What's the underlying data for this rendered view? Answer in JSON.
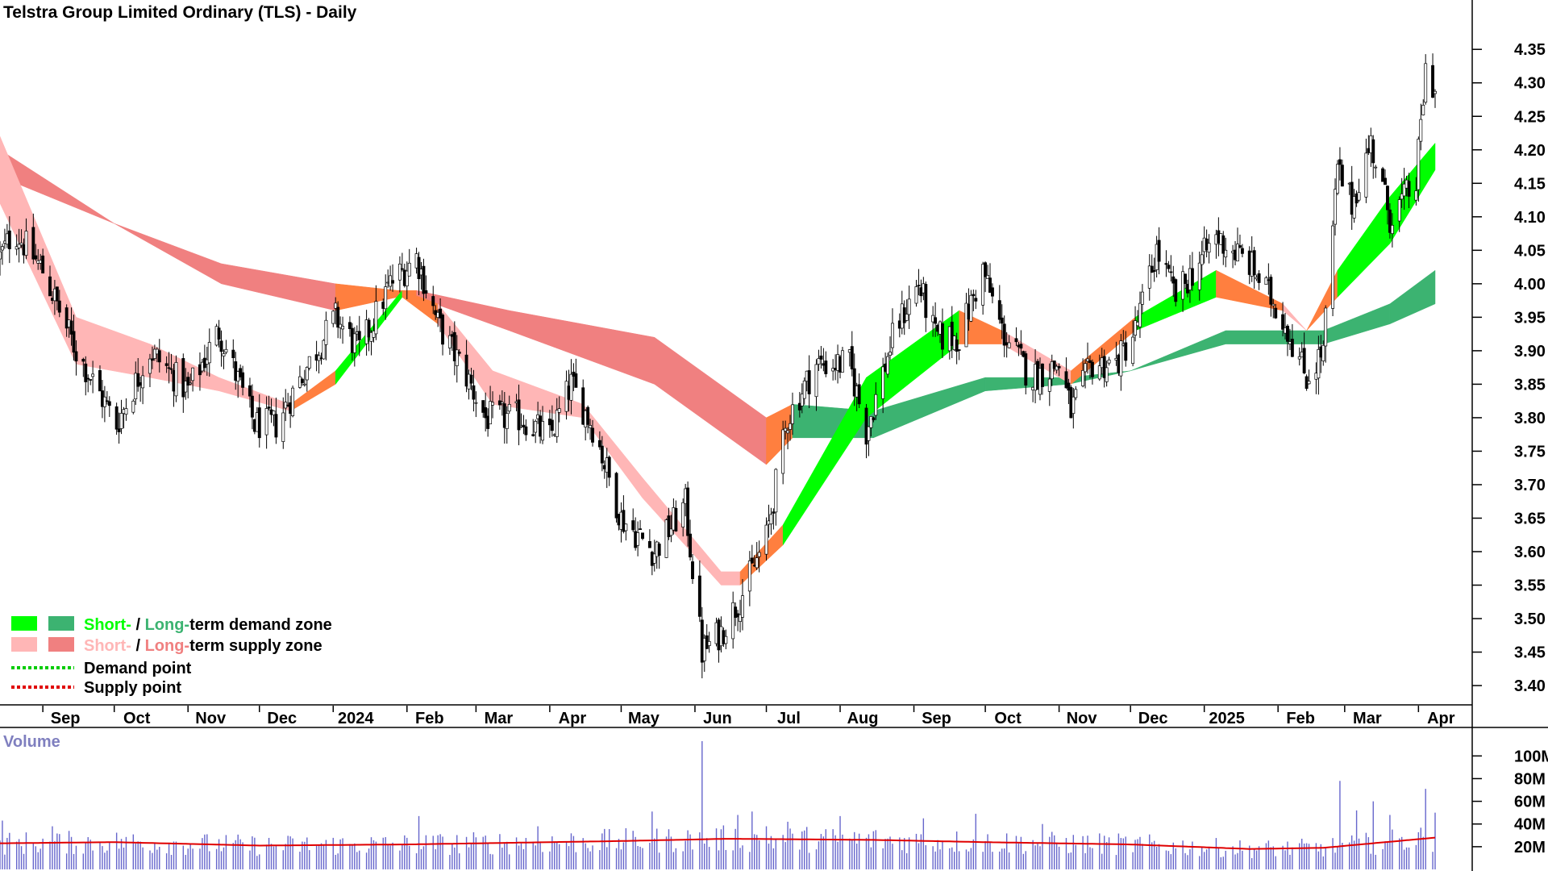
{
  "chart_data": {
    "type": "candlestick",
    "title": "Telstra Group Limited Ordinary (TLS) - Daily",
    "price_axis": {
      "ticks": [
        "3.40",
        "3.45",
        "3.50",
        "3.55",
        "3.60",
        "3.65",
        "3.70",
        "3.75",
        "3.80",
        "3.85",
        "3.90",
        "3.95",
        "4.00",
        "4.05",
        "4.10",
        "4.15",
        "4.20",
        "4.25",
        "4.30",
        "4.35"
      ],
      "range": [
        3.37,
        4.39
      ]
    },
    "time_axis": {
      "labels": [
        "Sep",
        "Oct",
        "Nov",
        "Dec",
        "2024",
        "Feb",
        "Mar",
        "Apr",
        "May",
        "Jun",
        "Jul",
        "Aug",
        "Sep",
        "Oct",
        "Nov",
        "Dec",
        "2025",
        "Feb",
        "Mar",
        "Apr"
      ],
      "start": "2023-08-14",
      "end": "2025-04-08"
    },
    "price_anchors": [
      [
        "2023-08-14",
        4.04
      ],
      [
        "2023-08-20",
        4.08
      ],
      [
        "2023-09-01",
        4.02
      ],
      [
        "2023-09-15",
        3.9
      ],
      [
        "2023-10-02",
        3.79
      ],
      [
        "2023-10-16",
        3.9
      ],
      [
        "2023-11-01",
        3.84
      ],
      [
        "2023-11-14",
        3.93
      ],
      [
        "2023-11-29",
        3.79
      ],
      [
        "2023-12-08",
        3.79
      ],
      [
        "2023-12-20",
        3.87
      ],
      [
        "2024-01-02",
        3.95
      ],
      [
        "2024-01-12",
        3.9
      ],
      [
        "2024-01-25",
        4.0
      ],
      [
        "2024-02-05",
        4.04
      ],
      [
        "2024-02-14",
        3.94
      ],
      [
        "2024-02-25",
        3.87
      ],
      [
        "2024-03-05",
        3.8
      ],
      [
        "2024-03-20",
        3.8
      ],
      [
        "2024-04-01",
        3.77
      ],
      [
        "2024-04-10",
        3.85
      ],
      [
        "2024-04-20",
        3.78
      ],
      [
        "2024-05-01",
        3.65
      ],
      [
        "2024-05-15",
        3.6
      ],
      [
        "2024-05-28",
        3.67
      ],
      [
        "2024-06-04",
        3.45
      ],
      [
        "2024-06-12",
        3.48
      ],
      [
        "2024-06-20",
        3.53
      ],
      [
        "2024-07-01",
        3.62
      ],
      [
        "2024-07-10",
        3.8
      ],
      [
        "2024-07-22",
        3.88
      ],
      [
        "2024-08-05",
        3.88
      ],
      [
        "2024-08-12",
        3.78
      ],
      [
        "2024-08-24",
        3.93
      ],
      [
        "2024-09-03",
        4.0
      ],
      [
        "2024-09-10",
        3.92
      ],
      [
        "2024-09-20",
        3.92
      ],
      [
        "2024-09-30",
        4.02
      ],
      [
        "2024-10-08",
        3.93
      ],
      [
        "2024-10-20",
        3.86
      ],
      [
        "2024-11-01",
        3.88
      ],
      [
        "2024-11-06",
        3.81
      ],
      [
        "2024-11-15",
        3.88
      ],
      [
        "2024-11-25",
        3.88
      ],
      [
        "2024-12-03",
        3.93
      ],
      [
        "2024-12-12",
        4.05
      ],
      [
        "2024-12-20",
        3.98
      ],
      [
        "2025-01-06",
        4.07
      ],
      [
        "2025-01-20",
        4.03
      ],
      [
        "2025-02-03",
        3.95
      ],
      [
        "2025-02-13",
        3.86
      ],
      [
        "2025-02-20",
        3.9
      ],
      [
        "2025-02-26",
        4.17
      ],
      [
        "2025-03-04",
        4.12
      ],
      [
        "2025-03-12",
        4.21
      ],
      [
        "2025-03-20",
        4.1
      ],
      [
        "2025-03-31",
        4.15
      ],
      [
        "2025-04-04",
        4.32
      ],
      [
        "2025-04-08",
        4.29
      ]
    ],
    "zones": {
      "short_term": [
        [
          "2023-08-14",
          4.22,
          4.12,
          "supply"
        ],
        [
          "2023-09-15",
          3.95,
          3.88,
          "supply"
        ],
        [
          "2023-10-16",
          3.91,
          3.86,
          "supply"
        ],
        [
          "2023-11-14",
          3.86,
          3.84,
          "supply"
        ],
        [
          "2023-12-14",
          3.82,
          3.81,
          "supply"
        ],
        [
          "2024-01-02",
          3.87,
          3.85,
          "demand"
        ],
        [
          "2024-01-30",
          3.99,
          3.98,
          "demand"
        ],
        [
          "2024-02-14",
          3.97,
          3.94,
          "supply"
        ],
        [
          "2024-03-08",
          3.87,
          3.82,
          "supply"
        ],
        [
          "2024-04-15",
          3.82,
          3.8,
          "supply"
        ],
        [
          "2024-05-10",
          3.71,
          3.68,
          "supply"
        ],
        [
          "2024-06-12",
          3.57,
          3.55,
          "supply"
        ],
        [
          "2024-06-20",
          3.57,
          3.55,
          "supply"
        ],
        [
          "2024-07-08",
          3.64,
          3.61,
          "demand"
        ],
        [
          "2024-08-12",
          3.86,
          3.8,
          "demand"
        ],
        [
          "2024-09-20",
          3.96,
          3.91,
          "demand"
        ],
        [
          "2024-10-08",
          3.93,
          3.91,
          "supply"
        ],
        [
          "2024-11-06",
          3.87,
          3.85,
          "supply"
        ],
        [
          "2024-12-03",
          3.95,
          3.93,
          "demand"
        ],
        [
          "2025-01-06",
          4.02,
          3.98,
          "demand"
        ],
        [
          "2025-02-03",
          3.97,
          3.96,
          "supply"
        ],
        [
          "2025-02-13",
          3.93,
          3.93,
          "supply"
        ],
        [
          "2025-02-26",
          4.02,
          3.98,
          "demand"
        ],
        [
          "2025-03-20",
          4.13,
          4.06,
          "demand"
        ],
        [
          "2025-04-08",
          4.21,
          4.17,
          "demand"
        ]
      ],
      "long_term": [
        [
          "2023-08-14",
          4.2,
          4.16,
          "supply"
        ],
        [
          "2023-10-01",
          4.09,
          4.09,
          "supply"
        ],
        [
          "2023-11-15",
          4.03,
          4.0,
          "supply"
        ],
        [
          "2024-01-02",
          4.0,
          3.96,
          "supply"
        ],
        [
          "2024-01-28",
          3.99,
          3.98,
          "demand"
        ],
        [
          "2024-02-05",
          3.99,
          3.98,
          "supply"
        ],
        [
          "2024-03-15",
          3.96,
          3.93,
          "supply"
        ],
        [
          "2024-05-15",
          3.92,
          3.85,
          "supply"
        ],
        [
          "2024-07-01",
          3.8,
          3.73,
          "supply"
        ],
        [
          "2024-07-12",
          3.82,
          3.77,
          "demand"
        ],
        [
          "2024-08-15",
          3.81,
          3.77,
          "demand"
        ],
        [
          "2024-10-01",
          3.86,
          3.84,
          "demand"
        ],
        [
          "2024-11-05",
          3.86,
          3.85,
          "demand"
        ],
        [
          "2024-12-01",
          3.87,
          3.87,
          "demand"
        ],
        [
          "2025-01-10",
          3.93,
          3.91,
          "demand"
        ],
        [
          "2025-02-20",
          3.93,
          3.91,
          "demand"
        ],
        [
          "2025-03-20",
          3.97,
          3.94,
          "demand"
        ],
        [
          "2025-04-08",
          4.02,
          3.97,
          "demand"
        ]
      ]
    },
    "volume": {
      "title": "Volume",
      "ticks": [
        "20M",
        "40M",
        "60M",
        "80M",
        "100M"
      ],
      "range_max": 118,
      "unit": "M",
      "ma_anchors": [
        [
          "2023-08-14",
          23
        ],
        [
          "2023-10-01",
          24
        ],
        [
          "2023-12-01",
          21
        ],
        [
          "2024-02-01",
          22
        ],
        [
          "2024-05-01",
          25
        ],
        [
          "2024-06-15",
          27
        ],
        [
          "2024-08-15",
          26
        ],
        [
          "2024-10-01",
          24
        ],
        [
          "2024-12-01",
          22
        ],
        [
          "2025-01-20",
          18
        ],
        [
          "2025-02-20",
          19
        ],
        [
          "2025-04-08",
          28
        ]
      ],
      "spikes": [
        [
          "2024-06-04",
          113
        ],
        [
          "2024-06-19",
          48
        ],
        [
          "2024-06-25",
          51
        ],
        [
          "2024-07-01",
          38
        ],
        [
          "2024-07-10",
          42
        ],
        [
          "2024-08-01",
          47
        ],
        [
          "2024-09-05",
          45
        ],
        [
          "2024-09-27",
          49
        ],
        [
          "2024-10-25",
          40
        ],
        [
          "2025-02-27",
          78
        ],
        [
          "2025-03-06",
          52
        ],
        [
          "2025-03-13",
          60
        ],
        [
          "2025-03-20",
          48
        ],
        [
          "2025-04-04",
          71
        ],
        [
          "2025-04-08",
          50
        ],
        [
          "2023-08-15",
          43
        ],
        [
          "2023-09-05",
          38
        ],
        [
          "2024-02-06",
          47
        ],
        [
          "2024-03-27",
          38
        ],
        [
          "2024-05-14",
          51
        ]
      ]
    },
    "legend": [
      {
        "label_a": "Short-",
        "label_sep": " / ",
        "label_b": "Long-",
        "label_rest": "term demand zone",
        "color_short": "#00ff00",
        "color_long": "#3cb371",
        "text_short": "#00ff00",
        "text_long": "#3cb371"
      },
      {
        "label_a": "Short-",
        "label_sep": " / ",
        "label_b": "Long-",
        "label_rest": "term supply zone",
        "color_short": "#ffb6b6",
        "color_long": "#f08080",
        "text_short": "#ffb6b6",
        "text_long": "#f08080"
      },
      {
        "label": "Demand point",
        "line_color": "#00cc00"
      },
      {
        "label": "Supply point",
        "line_color": "#e00000"
      }
    ],
    "colors": {
      "demand_short": "#00ff00",
      "demand_long": "#3cb371",
      "supply_short": "#ffb6b6",
      "supply_long": "#f08080",
      "transition": "#ff7f3f",
      "candle": "#000000",
      "volume_bar": "#6666cc",
      "volume_ma": "#e00000"
    }
  }
}
